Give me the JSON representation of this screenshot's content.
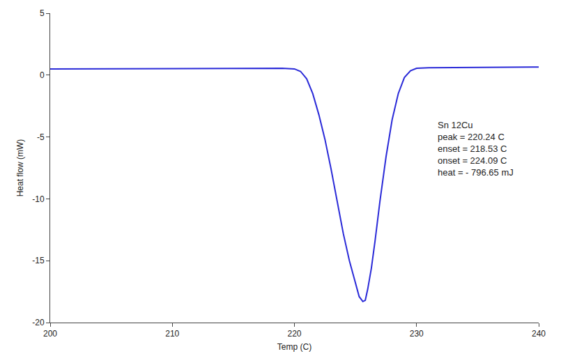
{
  "chart_data": {
    "type": "line",
    "x_label": "Temp (C)",
    "y_label": "Heat flow (mW)",
    "x": [
      200,
      205,
      210,
      215,
      219,
      220,
      220.5,
      221,
      221.5,
      222,
      222.5,
      223,
      223.5,
      224,
      224.5,
      225,
      225.3,
      225.6,
      225.8,
      226,
      226.3,
      226.6,
      227,
      227.5,
      228,
      228.5,
      229,
      229.5,
      230,
      231,
      235,
      240
    ],
    "series": [
      {
        "name": "Sn 12Cu",
        "color": "#2a2ad8",
        "values": [
          0.5,
          0.52,
          0.54,
          0.55,
          0.55,
          0.5,
          0.3,
          -0.3,
          -1.5,
          -3.2,
          -5.2,
          -7.6,
          -10.2,
          -12.8,
          -15.0,
          -16.9,
          -17.9,
          -18.3,
          -18.2,
          -17.3,
          -15.6,
          -13.4,
          -10.2,
          -6.6,
          -3.6,
          -1.5,
          -0.2,
          0.35,
          0.55,
          0.6,
          0.62,
          0.65
        ]
      }
    ],
    "xlim": [
      200,
      240
    ],
    "xticks": [
      200,
      210,
      220,
      230,
      240
    ],
    "ylim": [
      -20,
      5
    ],
    "yticks": [
      -20,
      -15,
      -10,
      -5,
      0,
      5
    ],
    "grid": false,
    "annotations": [
      "Sn 12Cu",
      "peak = 220.24 C",
      "enset = 218.53 C",
      "onset = 224.09 C",
      "heat = - 796.65 mJ"
    ]
  }
}
